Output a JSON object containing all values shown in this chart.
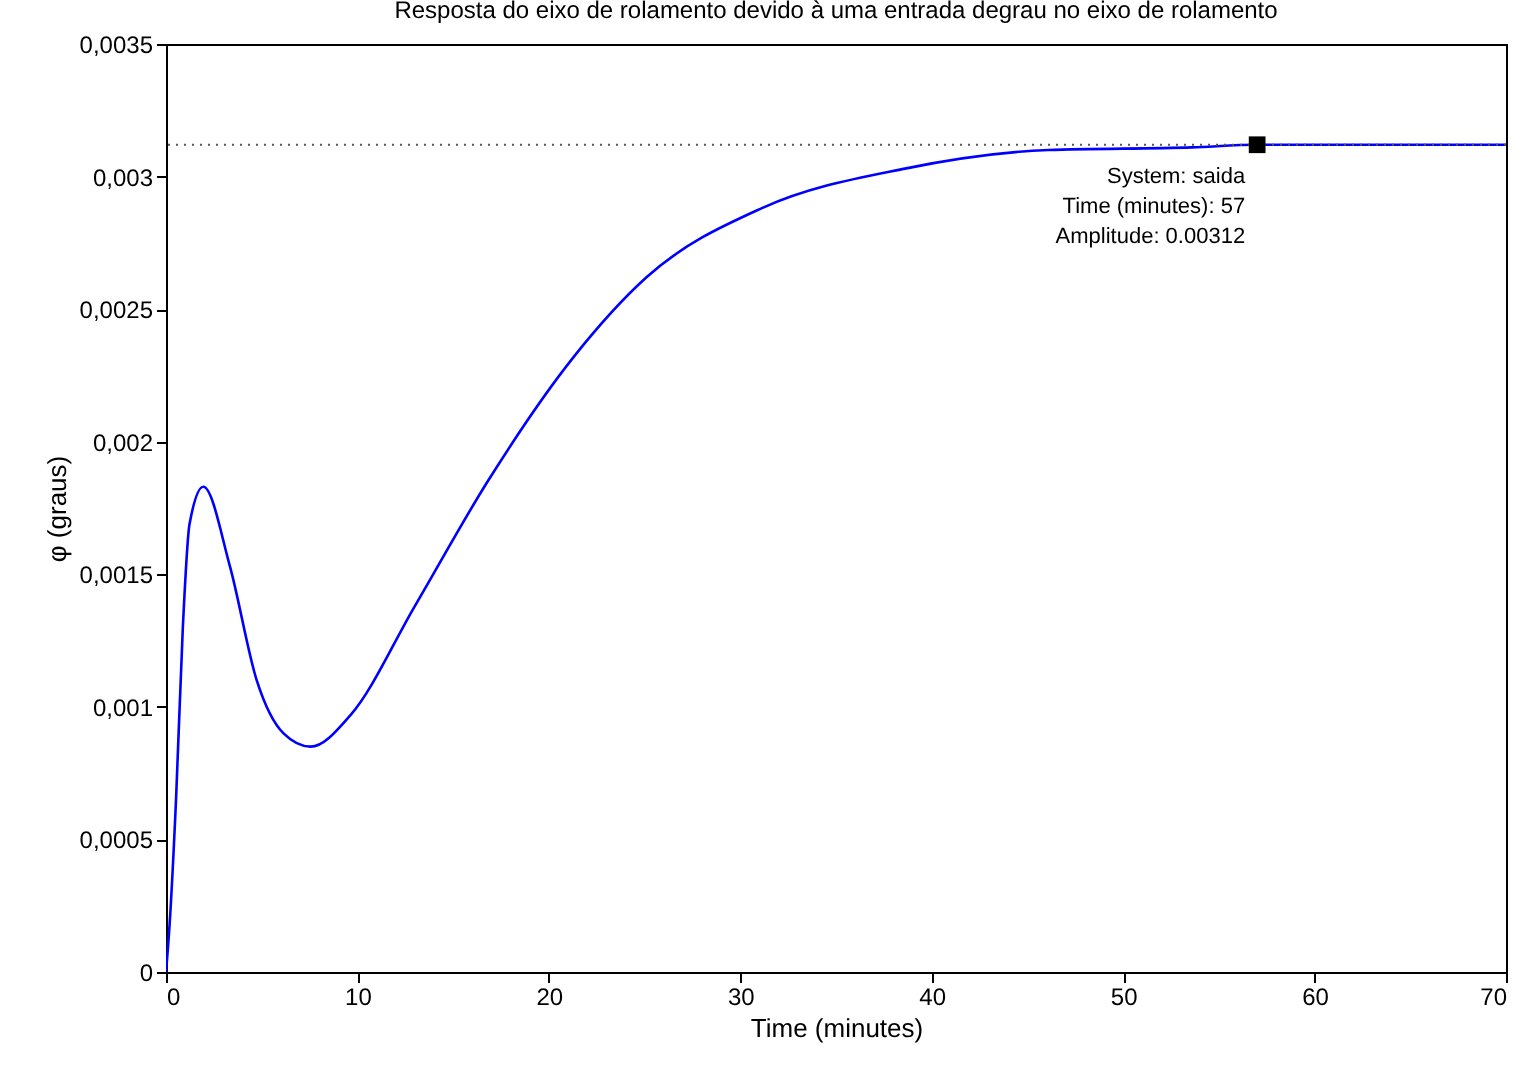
{
  "chart_data": {
    "type": "line",
    "title": "Resposta do eixo de rolamento devido à uma entrada degrau no eixo de rolamento",
    "xlabel": "Time (minutes)",
    "ylabel": "φ (graus)",
    "x": [
      0,
      0.18,
      0.53,
      0.88,
      1.23,
      1.95,
      3.34,
      4.74,
      6.14,
      7.55,
      9.65,
      13.0,
      16.8,
      21.3,
      25.1,
      31.1,
      38.6,
      46.1,
      53.6,
      57,
      70
    ],
    "series": [
      {
        "color": "#0000ff",
        "values": [
          0,
          0.00017,
          0.00066,
          0.0013,
          0.00169,
          0.00183,
          0.00153,
          0.0011,
          0.0009,
          0.00085,
          0.00097,
          0.00138,
          0.00185,
          0.00232,
          0.00262,
          0.00288,
          0.00303,
          0.0031,
          0.00311,
          0.00312,
          0.00312
        ]
      }
    ],
    "xlim": [
      0,
      70
    ],
    "xticks": [
      0,
      10,
      20,
      30,
      40,
      50,
      60,
      70
    ],
    "ylim": [
      0,
      0.0035
    ],
    "yticks": [
      {
        "value": 0,
        "label": "0"
      },
      {
        "value": 0.0005,
        "label": "0,0005"
      },
      {
        "value": 0.001,
        "label": "0,001"
      },
      {
        "value": 0.0015,
        "label": "0,0015"
      },
      {
        "value": 0.002,
        "label": "0,002"
      },
      {
        "value": 0.0025,
        "label": "0,0025"
      },
      {
        "value": 0.003,
        "label": "0,003"
      },
      {
        "value": 0.0035,
        "label": "0,0035"
      }
    ],
    "ref_lines": [
      {
        "axis": "y",
        "value": 0.00312,
        "color": "#555555",
        "line_style": "dotted"
      }
    ],
    "annotations": [
      {
        "text": "System: saida\nTime (minutes): 57\nAmplitude: 0.00312",
        "x": 57,
        "y": 0.00312
      }
    ],
    "grid": false,
    "marker": "none",
    "line_style": "solid"
  }
}
